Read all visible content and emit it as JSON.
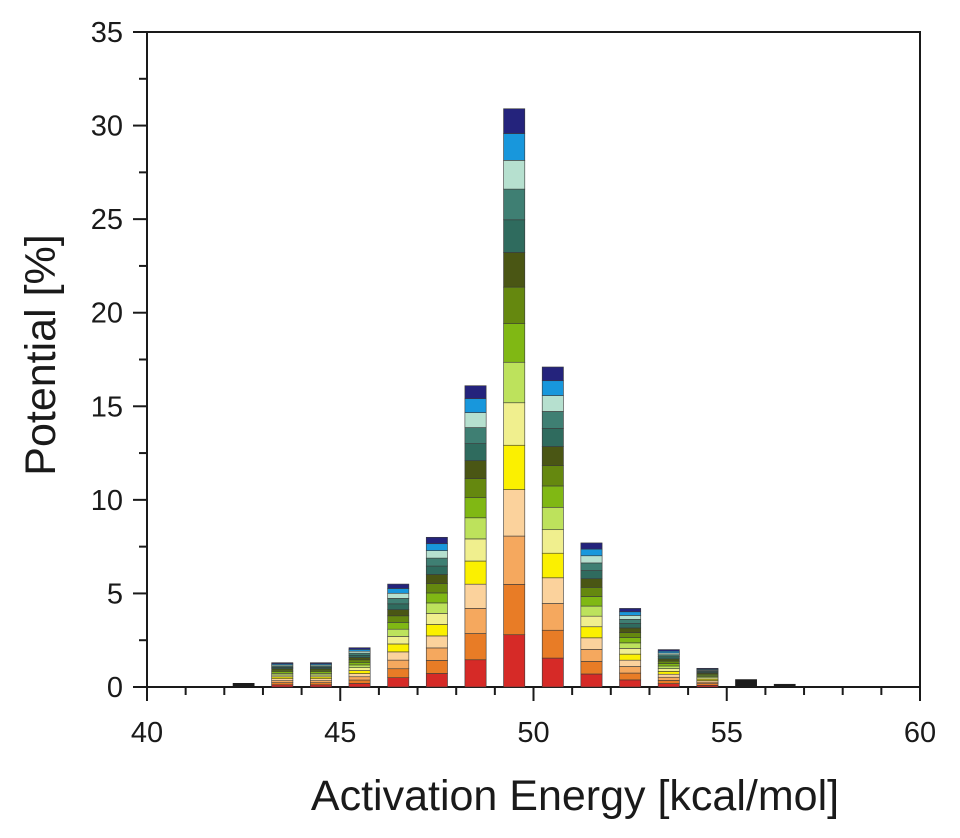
{
  "chart_data": {
    "type": "bar",
    "stacked": true,
    "xlabel": "Activation Energy [kcal/mol]",
    "ylabel": "Potential [%]",
    "xlim": [
      40,
      60
    ],
    "ylim": [
      0,
      35
    ],
    "xticks": [
      40,
      45,
      50,
      55,
      60
    ],
    "yticks": [
      0,
      5,
      10,
      15,
      20,
      25,
      30,
      35
    ],
    "grid": false,
    "legend": "none",
    "bar_width": 0.55,
    "segment_colors": [
      "#d62a27",
      "#e87c26",
      "#f5a85e",
      "#fbd29c",
      "#fbf000",
      "#f0ef8e",
      "#bde25c",
      "#80b814",
      "#65880f",
      "#4a5614",
      "#2f6b5e",
      "#3f7f73",
      "#b6e0cf",
      "#1897dc",
      "#24237c"
    ],
    "bars": [
      {
        "x": 42.5,
        "total": 0.2
      },
      {
        "x": 43.5,
        "total": 1.3
      },
      {
        "x": 44.5,
        "total": 1.3
      },
      {
        "x": 45.5,
        "total": 2.1
      },
      {
        "x": 46.5,
        "total": 5.5
      },
      {
        "x": 47.5,
        "total": 8.0
      },
      {
        "x": 48.5,
        "total": 16.1
      },
      {
        "x": 49.5,
        "total": 30.9
      },
      {
        "x": 50.5,
        "total": 17.1
      },
      {
        "x": 51.5,
        "total": 7.7
      },
      {
        "x": 52.5,
        "total": 4.2
      },
      {
        "x": 53.5,
        "total": 2.0
      },
      {
        "x": 54.5,
        "total": 1.0
      },
      {
        "x": 55.5,
        "total": 0.4
      },
      {
        "x": 56.5,
        "total": 0.15
      }
    ]
  }
}
